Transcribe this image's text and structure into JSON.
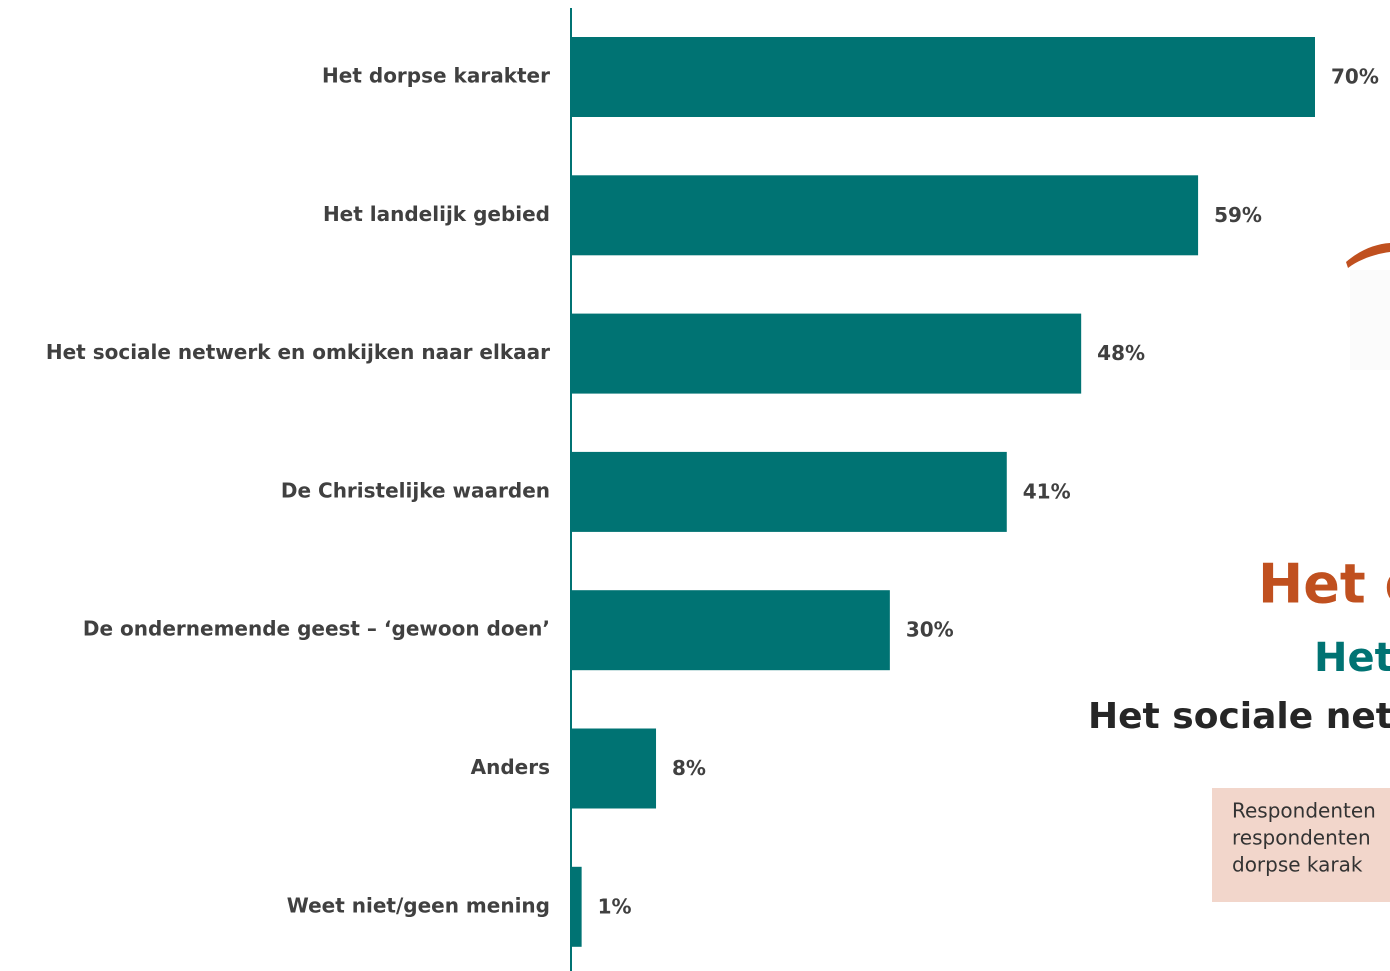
{
  "chart_data": {
    "type": "bar",
    "orientation": "horizontal",
    "categories": [
      "Het dorpse karakter",
      "Het landelijk gebied",
      "Het sociale netwerk en omkijken naar elkaar",
      "De Christelijke waarden",
      "De ondernemende geest – ‘gewoon doen’",
      "Anders",
      "Weet niet/geen mening"
    ],
    "values": [
      70,
      59,
      48,
      41,
      30,
      8,
      1
    ],
    "value_labels": [
      "70%",
      "59%",
      "48%",
      "41%",
      "30%",
      "8%",
      "1%"
    ],
    "color": "#007373"
  },
  "overlay": {
    "headline": "Het d",
    "subheadline": "Het",
    "third_line": "Het sociale net",
    "note_lines": [
      "Respondenten",
      "respondenten",
      "dorpse karak"
    ]
  }
}
